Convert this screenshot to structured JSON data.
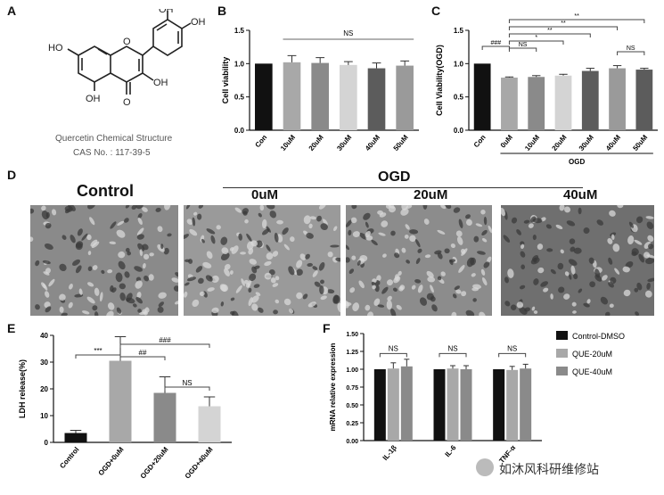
{
  "panel_letters": {
    "a": "A",
    "b": "B",
    "c": "C",
    "d": "D",
    "e": "E",
    "f": "F"
  },
  "structure": {
    "oh_labels": [
      "OH",
      "OH",
      "HO",
      "OH",
      "OH"
    ],
    "o_labels": [
      "O",
      "O"
    ],
    "caption": "Quercetin Chemical Structure",
    "cas": "CAS No. : 117-39-5"
  },
  "micrographs": {
    "ogd_label": "OGD",
    "labels": [
      "Control",
      "0uM",
      "20uM",
      "40uM"
    ]
  },
  "watermark": "如沐风科研维修站",
  "colors": {
    "black": "#111111",
    "grey1": "#a8a8a8",
    "grey2": "#8a8a8a",
    "grey3": "#d4d4d4",
    "grey4": "#5c5c5c",
    "grey5": "#9a9a9a"
  },
  "chart_data": [
    {
      "panel": "B",
      "type": "bar",
      "categories": [
        "Con",
        "10uM",
        "20uM",
        "30uM",
        "40uM",
        "50uM"
      ],
      "values": [
        1.0,
        1.02,
        1.01,
        0.98,
        0.93,
        0.97
      ],
      "errors": [
        0.0,
        0.1,
        0.08,
        0.05,
        0.08,
        0.07
      ],
      "ylabel": "Cell viability",
      "ylim": [
        0,
        1.5
      ],
      "yticks": [
        "0.0",
        "0.5",
        "1.0",
        "1.5"
      ],
      "annotation": "NS"
    },
    {
      "panel": "C",
      "type": "bar",
      "categories": [
        "Con",
        "0uM",
        "10uM",
        "20uM",
        "30uM",
        "40uM",
        "50uM"
      ],
      "values": [
        1.0,
        0.79,
        0.8,
        0.82,
        0.89,
        0.93,
        0.91
      ],
      "errors": [
        0.0,
        0.01,
        0.02,
        0.02,
        0.04,
        0.04,
        0.02
      ],
      "ylabel": "Cell Viability(OGD)",
      "ylim": [
        0,
        1.5
      ],
      "yticks": [
        "0.0",
        "0.5",
        "1.0",
        "1.5"
      ],
      "group_label": "OGD",
      "significance": [
        "###",
        "NS",
        "*",
        "**",
        "**",
        "**",
        "NS"
      ]
    },
    {
      "panel": "E",
      "type": "bar",
      "categories": [
        "Control",
        "OGD+0uM",
        "OGD+20uM",
        "OGD+40uM"
      ],
      "values": [
        3.5,
        30.5,
        18.5,
        13.5
      ],
      "errors": [
        1.0,
        9.0,
        6.0,
        3.5
      ],
      "ylabel": "LDH release(%)",
      "ylim": [
        0,
        40
      ],
      "yticks": [
        "0",
        "10",
        "20",
        "30",
        "40"
      ],
      "significance": [
        "***",
        "###",
        "##",
        "NS"
      ]
    },
    {
      "panel": "F",
      "type": "bar",
      "categories": [
        "IL-1β",
        "IL-6",
        "TNF-α"
      ],
      "series": [
        {
          "name": "Control-DMSO",
          "values": [
            1.0,
            1.0,
            1.0
          ],
          "errors": [
            0.0,
            0.0,
            0.0
          ]
        },
        {
          "name": "QUE-20uM",
          "values": [
            1.01,
            1.01,
            0.99
          ],
          "errors": [
            0.08,
            0.04,
            0.05
          ]
        },
        {
          "name": "QUE-40uM",
          "values": [
            1.04,
            1.0,
            1.01
          ],
          "errors": [
            0.1,
            0.05,
            0.06
          ]
        }
      ],
      "ylabel": "mRNA relative expression",
      "ylim": [
        0,
        1.5
      ],
      "yticks": [
        "0.00",
        "0.25",
        "0.50",
        "0.75",
        "1.00",
        "1.25",
        "1.50"
      ],
      "annotation": "NS",
      "legend_position": "right"
    }
  ]
}
